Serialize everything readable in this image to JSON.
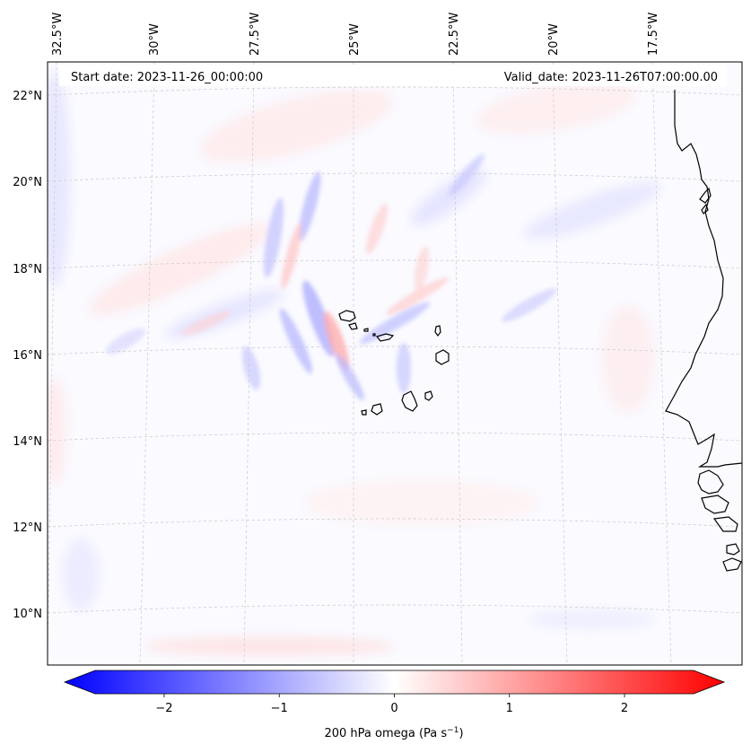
{
  "header": {
    "start_label": "Start date: 2023-11-26_00:00:00",
    "valid_label": "Valid_date: 2023-11-26T07:00:00.00"
  },
  "map": {
    "lon_labels": [
      "32.5°W",
      "30°W",
      "27.5°W",
      "25°W",
      "22.5°W",
      "20°W",
      "17.5°W"
    ],
    "lat_labels": [
      "22°N",
      "20°N",
      "18°N",
      "16°N",
      "14°N",
      "12°N",
      "10°N"
    ],
    "coastline_color": "#000000",
    "gridline_color": "#c8c8c8"
  },
  "colorbar": {
    "ticks": [
      "−2",
      "−1",
      "0",
      "1",
      "2"
    ],
    "tick_values": [
      -2,
      -1,
      0,
      1,
      2
    ],
    "range": [
      -2.6,
      2.6
    ],
    "colormap": "bwr",
    "low_color": "#0000ff",
    "mid_color": "#ffffff",
    "high_color": "#ff0000",
    "label_main": "200 hPa omega (Pa s",
    "label_sup": "−1",
    "label_end": ")"
  }
}
